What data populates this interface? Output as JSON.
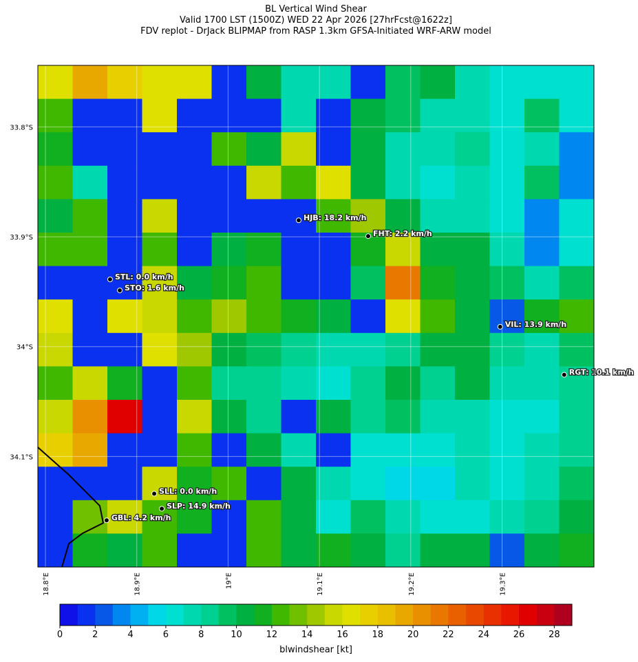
{
  "chart_data": {
    "type": "heatmap",
    "title": "BL Vertical Wind Shear",
    "subtitle": [
      "Valid 1700 LST (1500Z) WED 22 Apr 2026 [27hrFcst@1622z]",
      "FDV replot - DrJack BLIPMAP from RASP 1.3km GFSA-Initiated WRF-ARW model"
    ],
    "xlim": [
      18.7917,
      19.4006
    ],
    "ylim": [
      -34.2006,
      -33.744
    ],
    "xticks": [
      {
        "value": 18.8,
        "label": "18.8°E"
      },
      {
        "value": 18.9,
        "label": "18.9°E"
      },
      {
        "value": 19.0,
        "label": "19°E"
      },
      {
        "value": 19.1,
        "label": "19.1°E"
      },
      {
        "value": 19.2,
        "label": "19.2°E"
      },
      {
        "value": 19.3,
        "label": "19.3°E"
      }
    ],
    "yticks": [
      {
        "value": -33.8,
        "label": "33.8°S"
      },
      {
        "value": -33.9,
        "label": "33.9°S"
      },
      {
        "value": -34.0,
        "label": "34°S"
      },
      {
        "value": -34.1,
        "label": "34.1°S"
      }
    ],
    "grid": true,
    "values": [
      [
        16,
        19,
        17,
        16,
        16,
        1,
        10,
        7,
        7,
        1,
        9,
        10,
        7,
        6,
        6,
        6
      ],
      [
        12,
        1,
        1,
        16,
        1,
        1,
        1,
        7,
        1,
        10,
        9,
        7,
        7,
        6,
        9,
        6
      ],
      [
        11,
        1,
        1,
        1,
        1,
        12,
        10,
        15,
        1,
        10,
        7,
        7,
        8,
        6,
        7,
        3
      ],
      [
        12,
        7,
        1,
        1,
        1,
        1,
        15,
        12,
        16,
        10,
        7,
        6,
        7,
        6,
        9,
        3
      ],
      [
        10,
        12,
        1,
        15,
        1,
        1,
        1,
        1,
        12,
        14,
        10,
        7,
        7,
        6,
        3,
        6
      ],
      [
        12,
        12,
        1,
        12,
        1,
        10,
        11,
        1,
        1,
        11,
        15,
        10,
        10,
        7,
        3,
        6
      ],
      [
        1,
        1,
        1,
        15,
        10,
        11,
        12,
        1,
        1,
        9,
        21,
        11,
        10,
        9,
        7,
        9
      ],
      [
        16,
        1,
        16,
        15,
        12,
        14,
        12,
        11,
        10,
        1,
        16,
        12,
        10,
        2,
        11,
        12
      ],
      [
        15,
        1,
        1,
        16,
        14,
        10,
        9,
        8,
        7,
        7,
        8,
        10,
        10,
        8,
        7,
        9
      ],
      [
        12,
        15,
        11,
        1,
        12,
        8,
        8,
        7,
        6,
        8,
        10,
        8,
        10,
        7,
        7,
        8
      ],
      [
        15,
        20,
        26,
        1,
        15,
        10,
        8,
        1,
        10,
        8,
        9,
        7,
        7,
        6,
        6,
        8
      ],
      [
        17,
        19,
        1,
        1,
        12,
        1,
        10,
        7,
        1,
        6,
        6,
        6,
        7,
        6,
        7,
        8
      ],
      [
        1,
        1,
        1,
        15,
        11,
        12,
        1,
        10,
        7,
        6,
        5,
        5,
        7,
        6,
        7,
        9
      ],
      [
        1,
        13,
        15,
        12,
        11,
        1,
        12,
        10,
        6,
        9,
        7,
        6,
        6,
        7,
        8,
        10
      ],
      [
        1,
        11,
        10,
        12,
        1,
        1,
        12,
        10,
        11,
        10,
        8,
        10,
        10,
        2,
        10,
        11
      ]
    ],
    "colors": [
      "#1010e8",
      "#0a30f0",
      "#0858e8",
      "#0088f0",
      "#00b0f0",
      "#00d8e8",
      "#00e0d0",
      "#00d8b0",
      "#00d090",
      "#00c060",
      "#00b040",
      "#10b020",
      "#40b800",
      "#70c000",
      "#a0c800",
      "#c8d800",
      "#e0e000",
      "#e8d000",
      "#e8c000",
      "#e8a800",
      "#e89000",
      "#e87800",
      "#e86000",
      "#e84800",
      "#e83000",
      "#e81800",
      "#e00000",
      "#c80010",
      "#b00020"
    ],
    "clim": [
      0,
      29
    ],
    "cbar_ticks": [
      0,
      2,
      4,
      6,
      8,
      10,
      12,
      14,
      16,
      18,
      20,
      22,
      24,
      26,
      28
    ],
    "cbar_label": "blwindshear [kt]",
    "stations": [
      {
        "label": "HJB: 18.2 km/h",
        "lon": 19.0773,
        "lat": -33.885
      },
      {
        "label": "FHT: 2.2 km/h",
        "lon": 19.1534,
        "lat": -33.8994
      },
      {
        "label": "STL: 0.0 km/h",
        "lon": 18.8708,
        "lat": -33.9388
      },
      {
        "label": "STO: 1.6 km/h",
        "lon": 18.8814,
        "lat": -33.9488
      },
      {
        "label": "VIL: 13.9 km/h",
        "lon": 19.2979,
        "lat": -33.9819
      },
      {
        "label": "RGT: 10.1 km/h",
        "lon": 19.368,
        "lat": -34.0256
      },
      {
        "label": "SLL: 0.0 km/h",
        "lon": 18.9191,
        "lat": -34.1338
      },
      {
        "label": "SLP: 14.9 km/h",
        "lon": 18.9274,
        "lat": -34.1475
      },
      {
        "label": "GBL: 4.2 km/h",
        "lon": 18.867,
        "lat": -34.1581
      }
    ]
  }
}
